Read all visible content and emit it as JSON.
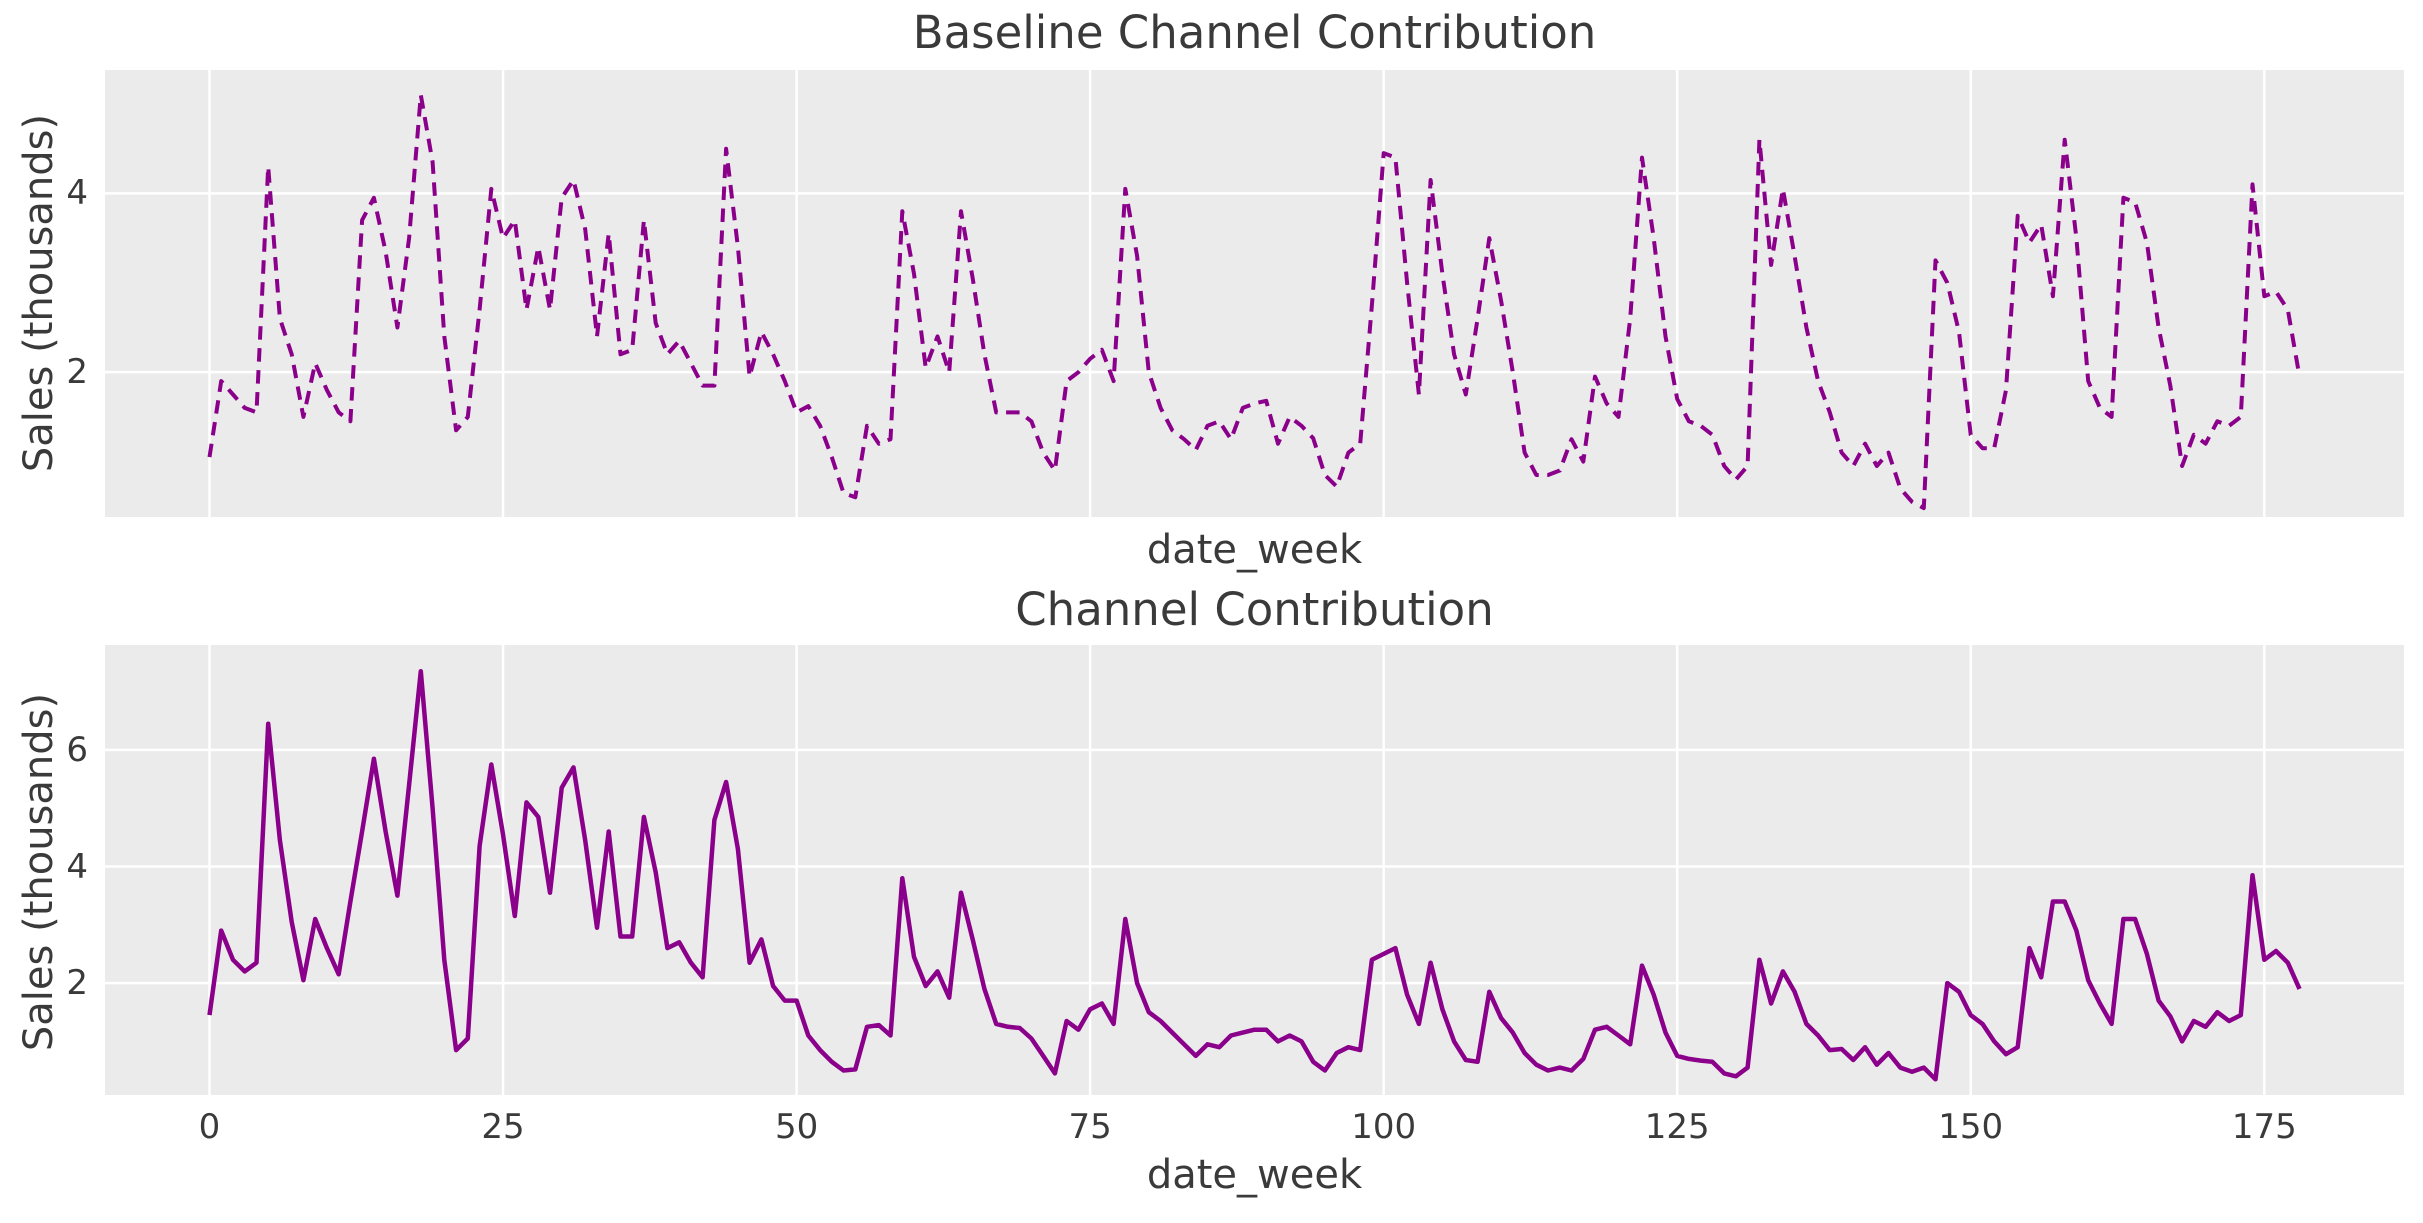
{
  "figure": {
    "background_color": "#ffffff",
    "panel_background_color": "#ebebeb",
    "grid_color": "#ffffff",
    "text_color": "#3a3a3a",
    "line_color": "#8B008B"
  },
  "chart_data": [
    {
      "type": "line",
      "title": "Baseline Channel Contribution",
      "xlabel": "date_week",
      "ylabel": "Sales (thousands)",
      "line_style": "dashed",
      "line_color": "#8B008B",
      "line_width": 4,
      "dash_pattern": [
        13.5,
        8.5
      ],
      "grid": true,
      "legend": false,
      "x_start": 0,
      "x_step": 1,
      "n_points": 179,
      "xlim": [
        -8.9,
        186.9
      ],
      "ylim": [
        0.38,
        5.38
      ],
      "xticks": [
        0,
        25,
        50,
        75,
        100,
        125,
        150,
        175
      ],
      "xtick_labels_visible": false,
      "yticks": [
        2,
        4
      ],
      "values": [
        1.05,
        1.9,
        1.75,
        1.6,
        1.55,
        4.3,
        2.6,
        2.2,
        1.5,
        2.1,
        1.8,
        1.55,
        1.45,
        3.7,
        3.95,
        3.35,
        2.5,
        3.5,
        5.1,
        4.35,
        2.4,
        1.35,
        1.5,
        2.7,
        4.05,
        3.5,
        3.7,
        2.7,
        3.4,
        2.7,
        3.95,
        4.15,
        3.6,
        2.4,
        3.55,
        2.2,
        2.25,
        3.7,
        2.55,
        2.2,
        2.35,
        2.1,
        1.85,
        1.85,
        4.5,
        3.4,
        1.95,
        2.45,
        2.2,
        1.9,
        1.55,
        1.62,
        1.4,
        1.05,
        0.65,
        0.6,
        1.4,
        1.2,
        1.25,
        3.8,
        3.1,
        2.05,
        2.4,
        2.0,
        3.8,
        3.05,
        2.2,
        1.55,
        1.55,
        1.55,
        1.45,
        1.1,
        0.9,
        1.9,
        2.0,
        2.15,
        2.25,
        1.9,
        4.05,
        3.3,
        2.0,
        1.6,
        1.35,
        1.25,
        1.13,
        1.4,
        1.45,
        1.25,
        1.6,
        1.65,
        1.68,
        1.2,
        1.5,
        1.4,
        1.26,
        0.85,
        0.72,
        1.1,
        1.2,
        2.75,
        4.45,
        4.4,
        3.0,
        1.75,
        4.15,
        3.1,
        2.2,
        1.75,
        2.6,
        3.5,
        2.8,
        2.0,
        1.1,
        0.85,
        0.85,
        0.9,
        1.25,
        1.0,
        1.95,
        1.65,
        1.5,
        2.6,
        4.4,
        3.5,
        2.4,
        1.7,
        1.45,
        1.4,
        1.3,
        0.95,
        0.8,
        0.95,
        4.6,
        3.2,
        4.05,
        3.3,
        2.5,
        1.9,
        1.55,
        1.1,
        0.95,
        1.2,
        0.95,
        1.1,
        0.7,
        0.55,
        0.48,
        3.25,
        3.0,
        2.45,
        1.3,
        1.15,
        1.15,
        1.8,
        3.75,
        3.45,
        3.65,
        2.85,
        4.6,
        3.5,
        1.9,
        1.6,
        1.5,
        3.95,
        3.9,
        3.45,
        2.5,
        1.85,
        0.95,
        1.3,
        1.2,
        1.45,
        1.4,
        1.5,
        4.1,
        2.85,
        2.9,
        2.7,
        1.95
      ]
    },
    {
      "type": "line",
      "title": "Channel Contribution",
      "xlabel": "date_week",
      "ylabel": "Sales (thousands)",
      "line_style": "solid",
      "line_color": "#8B008B",
      "line_width": 4.5,
      "dash_pattern": null,
      "grid": true,
      "legend": false,
      "x_start": 0,
      "x_step": 1,
      "n_points": 179,
      "xlim": [
        -8.9,
        186.9
      ],
      "ylim": [
        0.08,
        7.8
      ],
      "xticks": [
        0,
        25,
        50,
        75,
        100,
        125,
        150,
        175
      ],
      "xtick_labels_visible": true,
      "yticks": [
        2,
        4,
        6
      ],
      "values": [
        1.45,
        2.9,
        2.4,
        2.2,
        2.35,
        6.45,
        4.45,
        3.05,
        2.05,
        3.1,
        2.6,
        2.15,
        3.4,
        4.6,
        5.85,
        4.6,
        3.5,
        5.4,
        7.35,
        5.0,
        2.4,
        0.85,
        1.05,
        4.35,
        5.75,
        4.55,
        3.15,
        5.1,
        4.85,
        3.55,
        5.35,
        5.7,
        4.45,
        2.95,
        4.6,
        2.8,
        2.8,
        4.85,
        3.9,
        2.6,
        2.7,
        2.35,
        2.1,
        4.8,
        5.45,
        4.3,
        2.35,
        2.75,
        1.95,
        1.7,
        1.7,
        1.1,
        0.85,
        0.65,
        0.5,
        0.52,
        1.25,
        1.28,
        1.1,
        3.8,
        2.45,
        1.95,
        2.2,
        1.75,
        3.55,
        2.75,
        1.9,
        1.3,
        1.25,
        1.23,
        1.05,
        0.75,
        0.45,
        1.35,
        1.2,
        1.55,
        1.65,
        1.3,
        3.1,
        2.0,
        1.5,
        1.35,
        1.15,
        0.95,
        0.75,
        0.95,
        0.9,
        1.1,
        1.15,
        1.2,
        1.2,
        1.0,
        1.1,
        1.0,
        0.65,
        0.5,
        0.8,
        0.9,
        0.85,
        2.4,
        2.5,
        2.6,
        1.8,
        1.3,
        2.35,
        1.55,
        1.0,
        0.68,
        0.65,
        1.85,
        1.4,
        1.15,
        0.8,
        0.6,
        0.5,
        0.55,
        0.5,
        0.7,
        1.2,
        1.25,
        1.1,
        0.95,
        2.3,
        1.8,
        1.15,
        0.75,
        0.7,
        0.67,
        0.65,
        0.45,
        0.4,
        0.55,
        2.4,
        1.65,
        2.2,
        1.85,
        1.3,
        1.1,
        0.85,
        0.87,
        0.68,
        0.9,
        0.6,
        0.8,
        0.55,
        0.48,
        0.55,
        0.35,
        2.0,
        1.85,
        1.45,
        1.3,
        1.0,
        0.78,
        0.9,
        2.6,
        2.1,
        3.4,
        3.4,
        2.9,
        2.05,
        1.65,
        1.3,
        3.1,
        3.1,
        2.5,
        1.7,
        1.43,
        1.0,
        1.35,
        1.25,
        1.5,
        1.35,
        1.45,
        3.85,
        2.4,
        2.55,
        2.35,
        1.9
      ]
    }
  ]
}
